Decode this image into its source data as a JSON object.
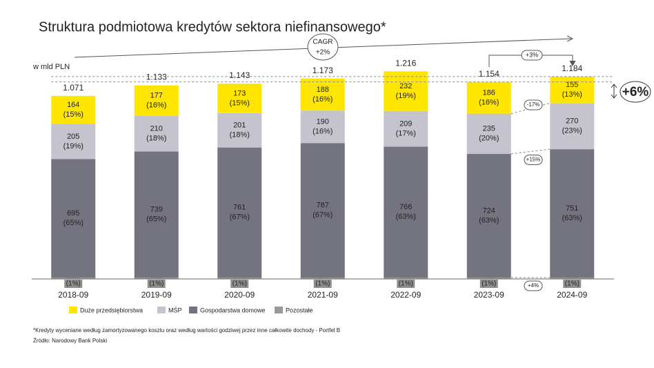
{
  "chart_data": {
    "type": "stacked_bar",
    "title": "Struktura podmiotowa kredytów sektora niefinansowego*",
    "unit_label": "w mld PLN",
    "categories": [
      "2018-09",
      "2019-09",
      "2020-09",
      "2021-09",
      "2022-09",
      "2023-09",
      "2024-09"
    ],
    "series": [
      {
        "name": "Duże przedsiębiorstwa",
        "color": "#ffe600",
        "values": [
          164,
          177,
          173,
          188,
          232,
          186,
          155
        ],
        "share_labels": [
          "(15%)",
          "(16%)",
          "(15%)",
          "(16%)",
          "(19%)",
          "(16%)",
          "(13%)"
        ]
      },
      {
        "name": "MŚP",
        "color": "#c4c3ce",
        "values": [
          205,
          210,
          201,
          190,
          209,
          235,
          270
        ],
        "share_labels": [
          "(19%)",
          "(18%)",
          "(18%)",
          "(16%)",
          "(17%)",
          "(20%)",
          "(23%)"
        ]
      },
      {
        "name": "Gospodarstwa domowe",
        "color": "#747480",
        "values": [
          695,
          739,
          761,
          787,
          766,
          724,
          751
        ],
        "share_labels": [
          "(65%)",
          "(65%)",
          "(67%)",
          "(67%)",
          "(63%)",
          "(63%)",
          "(63%)"
        ]
      },
      {
        "name": "Pozostałe",
        "color": "#999999",
        "values": [
          7,
          7,
          8,
          8,
          8,
          8,
          8
        ],
        "share_labels": [
          "(1%)",
          "(1%)",
          "(1%)",
          "(1%)",
          "(1%)",
          "(1%)",
          "(1%)"
        ]
      }
    ],
    "totals": [
      {
        "value": 1071,
        "label": "1.071"
      },
      {
        "value": 1133,
        "label": "1.133"
      },
      {
        "value": 1143,
        "label": "1.143"
      },
      {
        "value": 1173,
        "label": "1.173"
      },
      {
        "value": 1216,
        "label": "1.216"
      },
      {
        "value": 1154,
        "label": "1.154"
      },
      {
        "value": 1184,
        "label": "1.184"
      }
    ],
    "annotations": {
      "cagr_label": "CAGR",
      "cagr_value": "+2%",
      "total_change": "+3%",
      "large_change": "-17%",
      "sme_change": "+15%",
      "household_change": "+4%",
      "headline_change": "+6%"
    },
    "footnote": "*Kredyty wyceniane według zamortyzowanego kosztu oraz według wartości godziwej przez inne całkowite dochody - Portfel B",
    "source": "Źródło: Narodowy Bank Polski"
  }
}
